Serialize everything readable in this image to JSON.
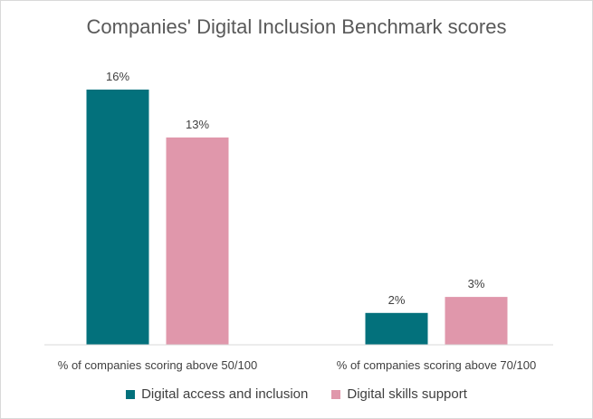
{
  "chart_data": {
    "type": "bar",
    "title": "Companies' Digital Inclusion Benchmark scores",
    "categories": [
      "% of companies scoring above 50/100",
      "% of companies scoring above 70/100"
    ],
    "series": [
      {
        "name": "Digital access and inclusion",
        "values": [
          16,
          2
        ],
        "labels": [
          "16%",
          "2%"
        ],
        "color": "#03717C"
      },
      {
        "name": "Digital skills support",
        "values": [
          13,
          3
        ],
        "labels": [
          "13%",
          "3%"
        ],
        "color": "#E097AB"
      }
    ],
    "ylim": [
      0,
      16
    ],
    "grid": false,
    "legend_position": "bottom"
  }
}
